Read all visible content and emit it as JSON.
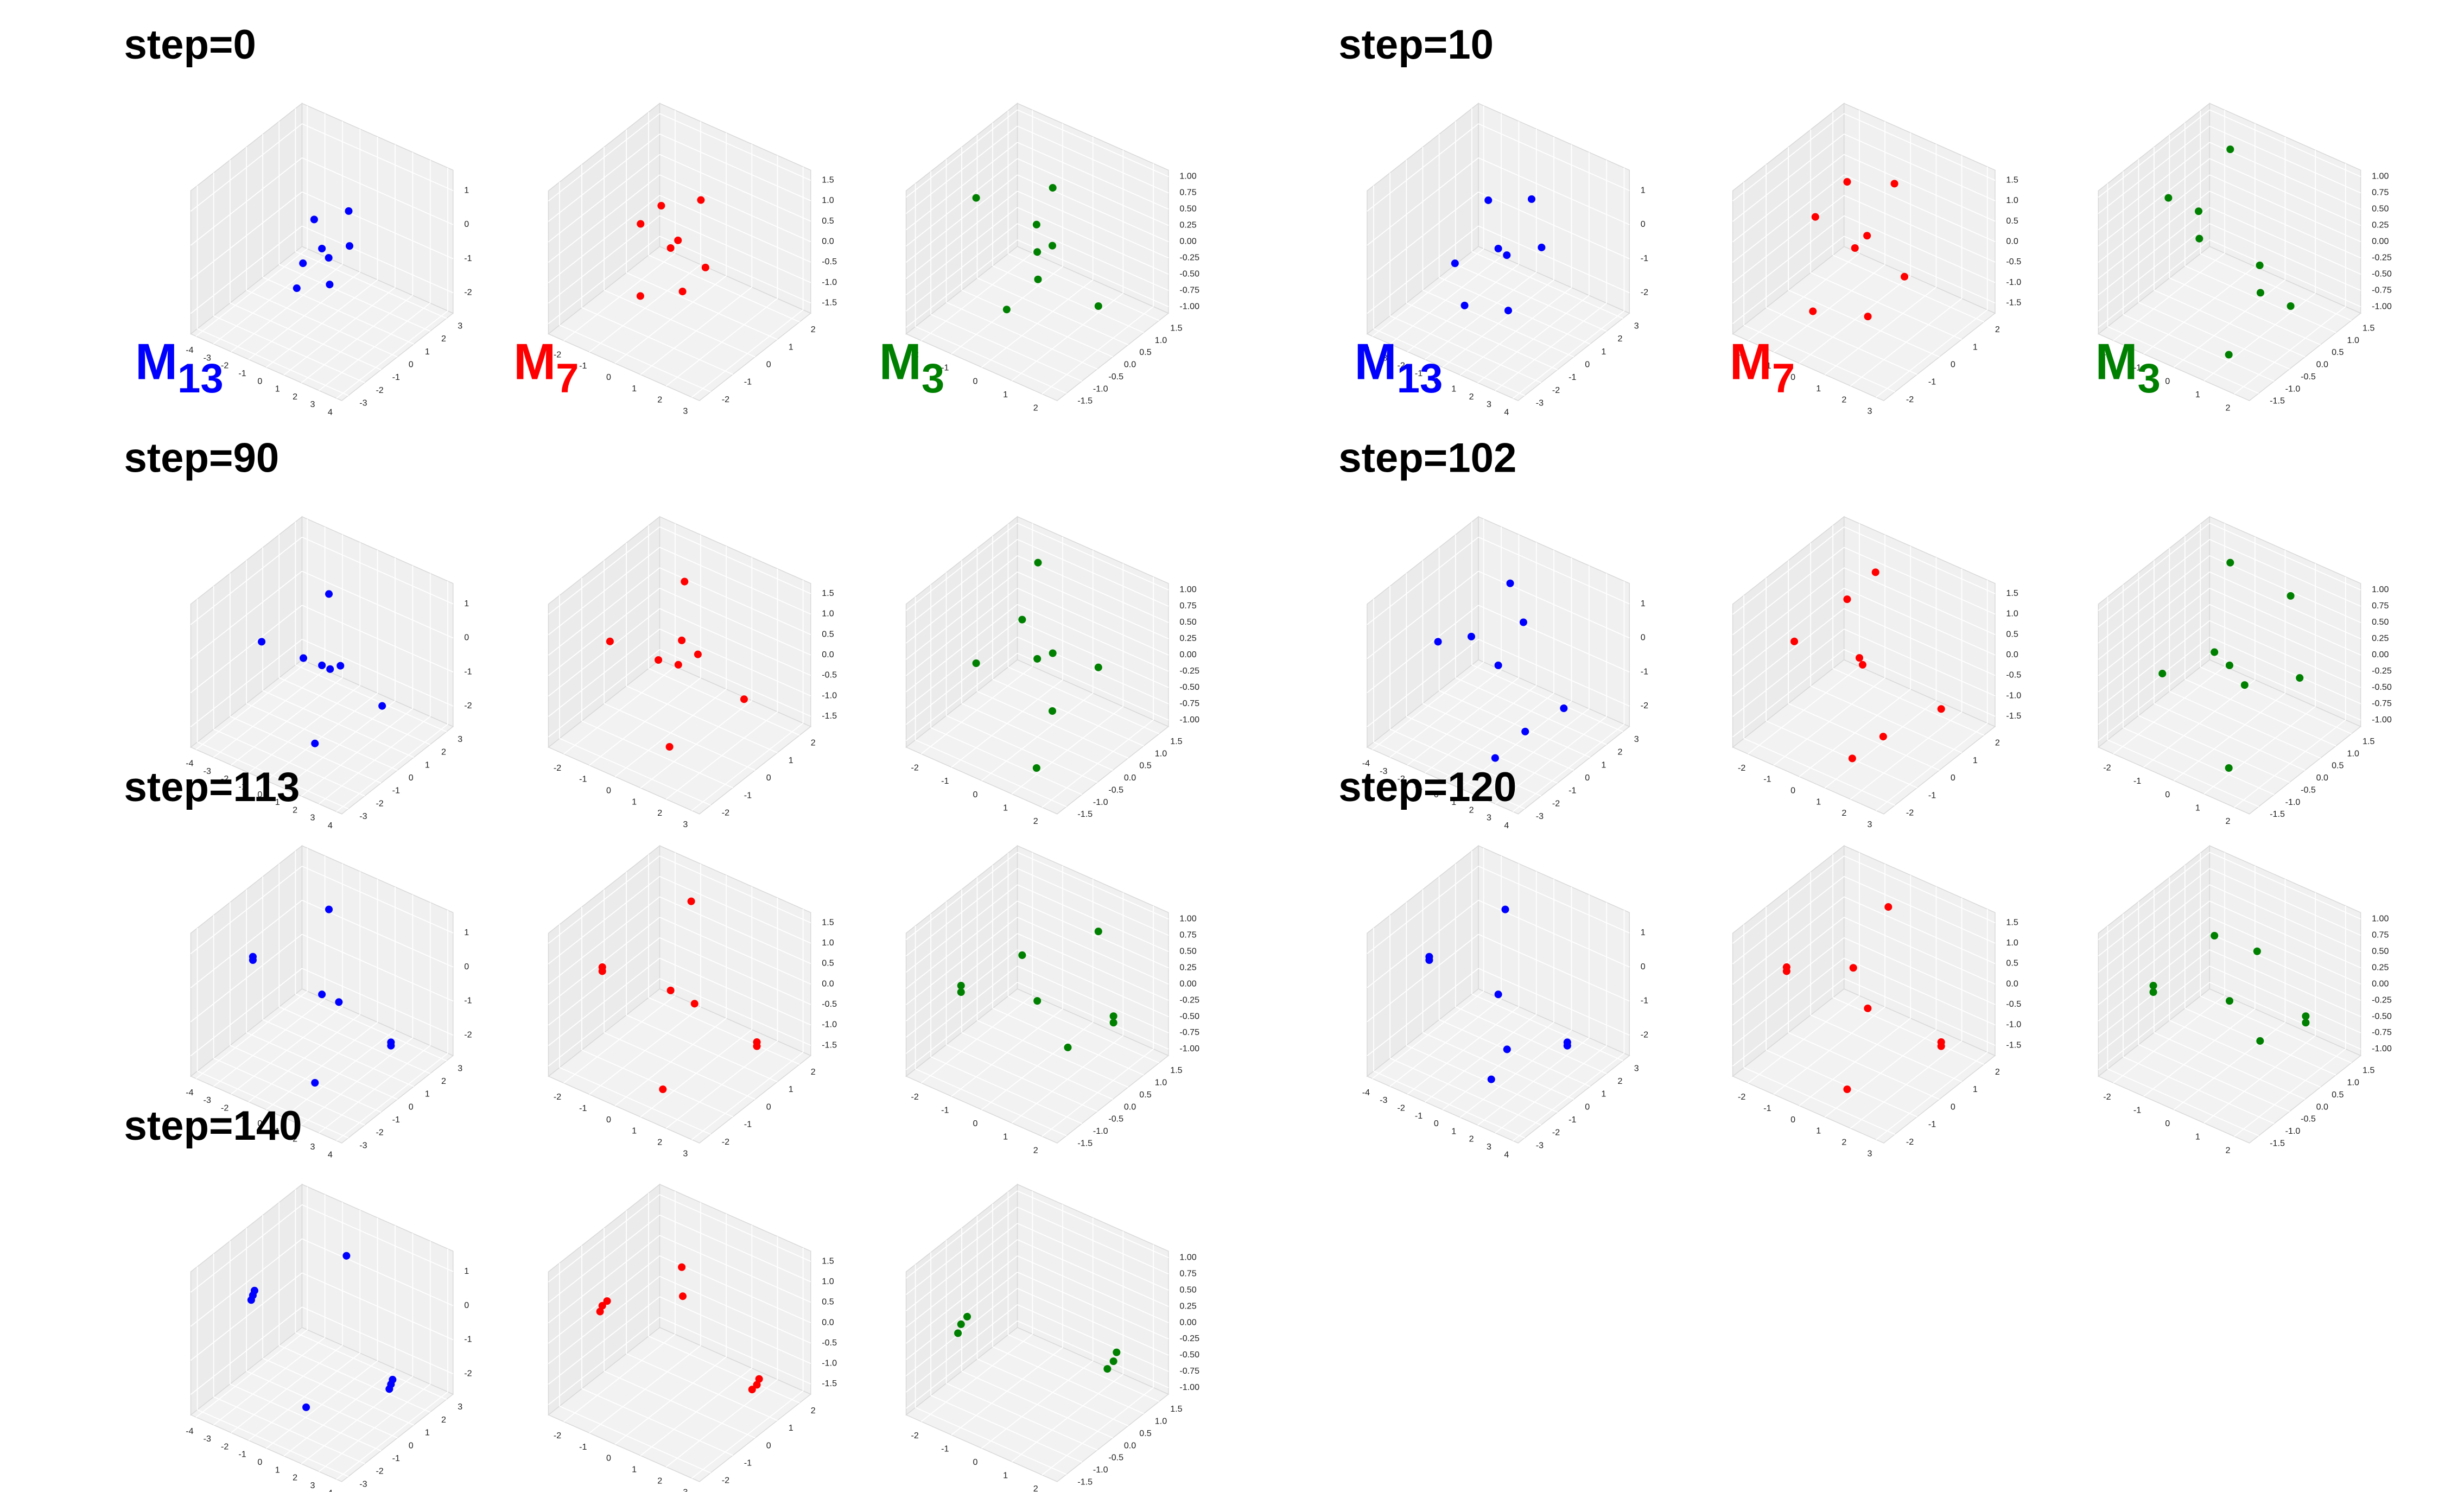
{
  "chart_data": {
    "type": "scatter3d-grid",
    "axes": [
      {
        "color": "#0000ff",
        "xlim": [
          -4.3,
          4.3
        ],
        "ylim": [
          -3.4,
          3.4
        ],
        "zlim": [
          -2.6,
          1.6
        ],
        "xticks": [
          -4,
          -3,
          -2,
          -1,
          0,
          1,
          2,
          3,
          4
        ],
        "yticks": [
          -3,
          -2,
          -1,
          0,
          1,
          2,
          3
        ],
        "zticks": [
          -2,
          -1,
          0,
          1
        ]
      },
      {
        "color": "#ff0000",
        "xlim": [
          -2.6,
          3.3
        ],
        "ylim": [
          -2.5,
          2.5
        ],
        "zlim": [
          -1.75,
          1.75
        ],
        "xticks": [
          -2,
          -1,
          0,
          1,
          2,
          3
        ],
        "yticks": [
          -2,
          -1,
          0,
          1,
          2
        ],
        "zticks": [
          -1.5,
          {
            "value": -1,
            "label": "-1.0"
          },
          -0.5,
          {
            "value": 0,
            "label": "0.0"
          },
          0.5,
          {
            "value": 1,
            "label": "1.0"
          },
          1.5
        ]
      },
      {
        "color": "#008000",
        "xlim": [
          -2.5,
          2.5
        ],
        "ylim": [
          -1.8,
          1.8
        ],
        "zlim": [
          -1.1,
          1.1
        ],
        "xticks": [
          -2,
          -1,
          0,
          1,
          2
        ],
        "yticks": [
          -1.5,
          {
            "value": -1,
            "label": "-1.0"
          },
          -0.5,
          {
            "value": 0,
            "label": "0.0"
          },
          0.5,
          {
            "value": 1,
            "label": "1.0"
          },
          1.5
        ],
        "zticks": [
          {
            "value": -1,
            "label": "-1.00"
          },
          {
            "value": -0.75,
            "label": "-0.75"
          },
          {
            "value": -0.5,
            "label": "-0.50"
          },
          {
            "value": -0.25,
            "label": "-0.25"
          },
          {
            "value": 0,
            "label": "0.00"
          },
          {
            "value": 0.25,
            "label": "0.25"
          },
          {
            "value": 0.5,
            "label": "0.50"
          },
          {
            "value": 0.75,
            "label": "0.75"
          },
          {
            "value": 1,
            "label": "1.00"
          }
        ]
      }
    ],
    "groups": [
      {
        "title": "step=0",
        "panels": [
          {
            "label": "M",
            "sub": "13",
            "x": [
              0,
              -1,
              1,
              0.5,
              -0.5,
              0.2,
              1.2,
              -0.8
            ],
            "y": [
              0,
              0.6,
              -0.6,
              1.1,
              -1,
              0.2,
              0.4,
              -0.3
            ],
            "z": [
              -0.4,
              0,
              -1,
              0.4,
              -1.3,
              -0.7,
              -0.2,
              -0.9
            ]
          },
          {
            "label": "M",
            "sub": "7",
            "x": [
              0,
              -0.8,
              0.9,
              0.4,
              -0.4,
              0.2,
              1.1,
              -1
            ],
            "y": [
              0,
              0.5,
              -0.5,
              0.9,
              -0.9,
              0.1,
              0.3,
              -0.2
            ],
            "z": [
              0,
              0.6,
              -0.6,
              0.9,
              -0.9,
              0.2,
              -0.3,
              0.4
            ]
          },
          {
            "label": "M",
            "sub": "3",
            "x": [
              -1,
              -1,
              1,
              1,
              0,
              0,
              -0.5,
              0.5
            ],
            "y": [
              -1,
              1,
              -1,
              1,
              0,
              0.5,
              -0.5,
              0
            ],
            "z": [
              1,
              -1,
              1,
              -1,
              0,
              0.8,
              -0.8,
              0.2
            ]
          }
        ]
      },
      {
        "title": "step=10",
        "panels": [
          {
            "label": "M",
            "sub": "13",
            "x": [
              0,
              -1.5,
              1.5,
              0.5,
              -0.8,
              0.3,
              2,
              -2
            ],
            "y": [
              0,
              1,
              -1,
              1.5,
              -1.2,
              0.2,
              0.5,
              -0.5
            ],
            "z": [
              -0.4,
              0.3,
              -1.5,
              0.6,
              -1.8,
              -0.6,
              -0.1,
              -1.1
            ]
          },
          {
            "label": "M",
            "sub": "7",
            "x": [
              0,
              -1,
              1.2,
              0.5,
              -0.6,
              0.3,
              1.5,
              -1.2
            ],
            "y": [
              0,
              0.8,
              -0.8,
              1.2,
              -1.2,
              0.2,
              0.5,
              -0.4
            ],
            "z": [
              0,
              1,
              -1,
              1.2,
              -1.2,
              0.3,
              -0.5,
              0.6
            ]
          },
          {
            "label": "M",
            "sub": "3",
            "x": [
              -1,
              -1,
              1,
              1,
              -1,
              1,
              0,
              0
            ],
            "y": [
              -1,
              1,
              -1,
              1,
              0,
              0,
              -1,
              1
            ],
            "z": [
              1,
              1,
              -1,
              -1,
              0,
              0,
              1,
              -1
            ]
          }
        ]
      },
      {
        "title": "step=90",
        "panels": [
          {
            "x": [
              -2.5,
              2.5,
              -1,
              1,
              0,
              0,
              -1.8,
              1.8
            ],
            "y": [
              -1,
              1,
              1.5,
              -1.5,
              0,
              0.5,
              0.8,
              -0.8
            ],
            "z": [
              0,
              -1.5,
              0.8,
              -2,
              -0.5,
              -0.8,
              -1,
              0.2
            ]
          },
          {
            "x": [
              -1.5,
              2,
              -0.5,
              1,
              0.3,
              0,
              -1,
              1.5
            ],
            "y": [
              -1,
              1,
              1.2,
              -1.2,
              0,
              0.5,
              0.6,
              -0.5
            ],
            "z": [
              0.5,
              -0.8,
              1.3,
              -1.3,
              0,
              0.3,
              -0.5,
              0.8
            ]
          },
          {
            "x": [
              -1,
              1,
              -1,
              1,
              0,
              -0.5,
              0.5,
              0
            ],
            "y": [
              -1,
              1,
              1,
              -1,
              0,
              0,
              0,
              0.5
            ],
            "z": [
              0.2,
              -0.2,
              1,
              -1,
              0.1,
              0.6,
              -0.6,
              0
            ]
          }
        ]
      },
      {
        "title": "step=102",
        "panels": [
          {
            "x": [
              -2.5,
              2.8,
              -1,
              1.5,
              0,
              -2,
              2,
              0.5
            ],
            "y": [
              -1,
              1,
              1.8,
              -1.8,
              0,
              0.5,
              -0.5,
              1
            ],
            "z": [
              0,
              -1.5,
              1,
              -2.2,
              -0.5,
              -0.3,
              -1.8,
              0.5
            ]
          },
          {
            "x": [
              -1.5,
              2.5,
              -0.5,
              1.2,
              0.3,
              -1,
              1.8,
              0
            ],
            "y": [
              -1,
              1,
              1.5,
              -1.5,
              0,
              0.8,
              -0.8,
              0.2
            ],
            "z": [
              0.5,
              -0.9,
              1.4,
              -1.4,
              0,
              0.9,
              -1,
              0
            ]
          },
          {
            "x": [
              -1.2,
              1.3,
              -1,
              1,
              0,
              -0.5,
              0.5,
              1
            ],
            "y": [
              -1,
              1,
              1,
              -1,
              0,
              0,
              0,
              1
            ],
            "z": [
              0,
              -0.3,
              1,
              -1,
              0,
              0.1,
              -0.2,
              0.9
            ]
          }
        ]
      },
      {
        "title": "step=113",
        "panels": [
          {
            "x": [
              -3,
              -3,
              3,
              3,
              -1,
              1,
              0,
              0.5
            ],
            "y": [
              -1,
              -1,
              1,
              1,
              1.5,
              -1.5,
              0,
              0.5
            ],
            "z": [
              0.3,
              0.2,
              -1.6,
              -1.7,
              1.2,
              -2.3,
              -0.5,
              -0.8
            ]
          },
          {
            "x": [
              -1.8,
              -1.8,
              2.5,
              2.5,
              -0.5,
              1,
              0,
              0.5
            ],
            "y": [
              -1,
              -1,
              1,
              1,
              1.5,
              -1.5,
              0,
              0.5
            ],
            "z": [
              0.5,
              0.4,
              -1,
              -1.1,
              1.4,
              -1.5,
              0,
              -0.4
            ]
          },
          {
            "x": [
              -1.5,
              -1.5,
              1.5,
              1.5,
              0,
              0.5,
              -0.5,
              1
            ],
            "y": [
              -1,
              -1,
              1,
              1,
              0,
              0.5,
              0,
              1
            ],
            "z": [
              0.2,
              0.1,
              -0.4,
              -0.5,
              -0.1,
              -0.9,
              0.5,
              0.8
            ]
          }
        ]
      },
      {
        "title": "step=120",
        "panels": [
          {
            "x": [
              -3,
              -3,
              3,
              3,
              -1,
              1,
              0,
              0.5
            ],
            "y": [
              -1,
              -1,
              1,
              1,
              1.5,
              -1.5,
              0,
              0
            ],
            "z": [
              0.3,
              0.2,
              -1.6,
              -1.7,
              1.2,
              -2.2,
              -0.5,
              -2
            ]
          },
          {
            "x": [
              -1.8,
              -1.8,
              2.5,
              2.5,
              0,
              1,
              0.5,
              -0.5
            ],
            "y": [
              -1,
              -1,
              1,
              1,
              1.5,
              -1.5,
              0,
              0.5
            ],
            "z": [
              0.5,
              0.4,
              -1,
              -1.1,
              1.4,
              -1.5,
              -0.3,
              0.2
            ]
          },
          {
            "x": [
              -1.5,
              -1.5,
              1.5,
              1.5,
              0,
              0.5,
              -0.5,
              0.3
            ],
            "y": [
              -1,
              -1,
              1,
              1,
              0,
              0.5,
              0,
              0.6
            ],
            "z": [
              0.2,
              0.1,
              -0.4,
              -0.5,
              -0.1,
              -0.8,
              0.8,
              0.5
            ]
          }
        ]
      },
      {
        "title": "step=140",
        "panels": [
          {
            "x": [
              -3,
              -3,
              -3,
              3,
              3,
              3,
              0,
              0.5
            ],
            "y": [
              -1,
              -1.1,
              -0.9,
              1,
              1.1,
              0.9,
              1.5,
              -1.5
            ],
            "z": [
              0.3,
              0.2,
              0.4,
              -1.7,
              -1.6,
              -1.8,
              1.2,
              -2
            ]
          },
          {
            "x": [
              -1.8,
              -1.8,
              -1.7,
              2.5,
              2.5,
              2.4,
              0,
              0.3
            ],
            "y": [
              -1,
              -1.1,
              -0.9,
              1,
              1.1,
              0.9,
              0.5,
              0.2
            ],
            "z": [
              0.5,
              0.4,
              0.6,
              -1.1,
              -1,
              -1.2,
              1.3,
              0.8
            ]
          },
          {
            "x": [
              -1.5,
              -1.5,
              -1.4,
              1.5,
              1.5,
              1.4
            ],
            "y": [
              -1,
              -1.1,
              -0.9,
              1,
              1.1,
              0.9
            ],
            "z": [
              0.2,
              0.1,
              0.3,
              -0.5,
              -0.4,
              -0.6
            ]
          }
        ]
      }
    ]
  }
}
